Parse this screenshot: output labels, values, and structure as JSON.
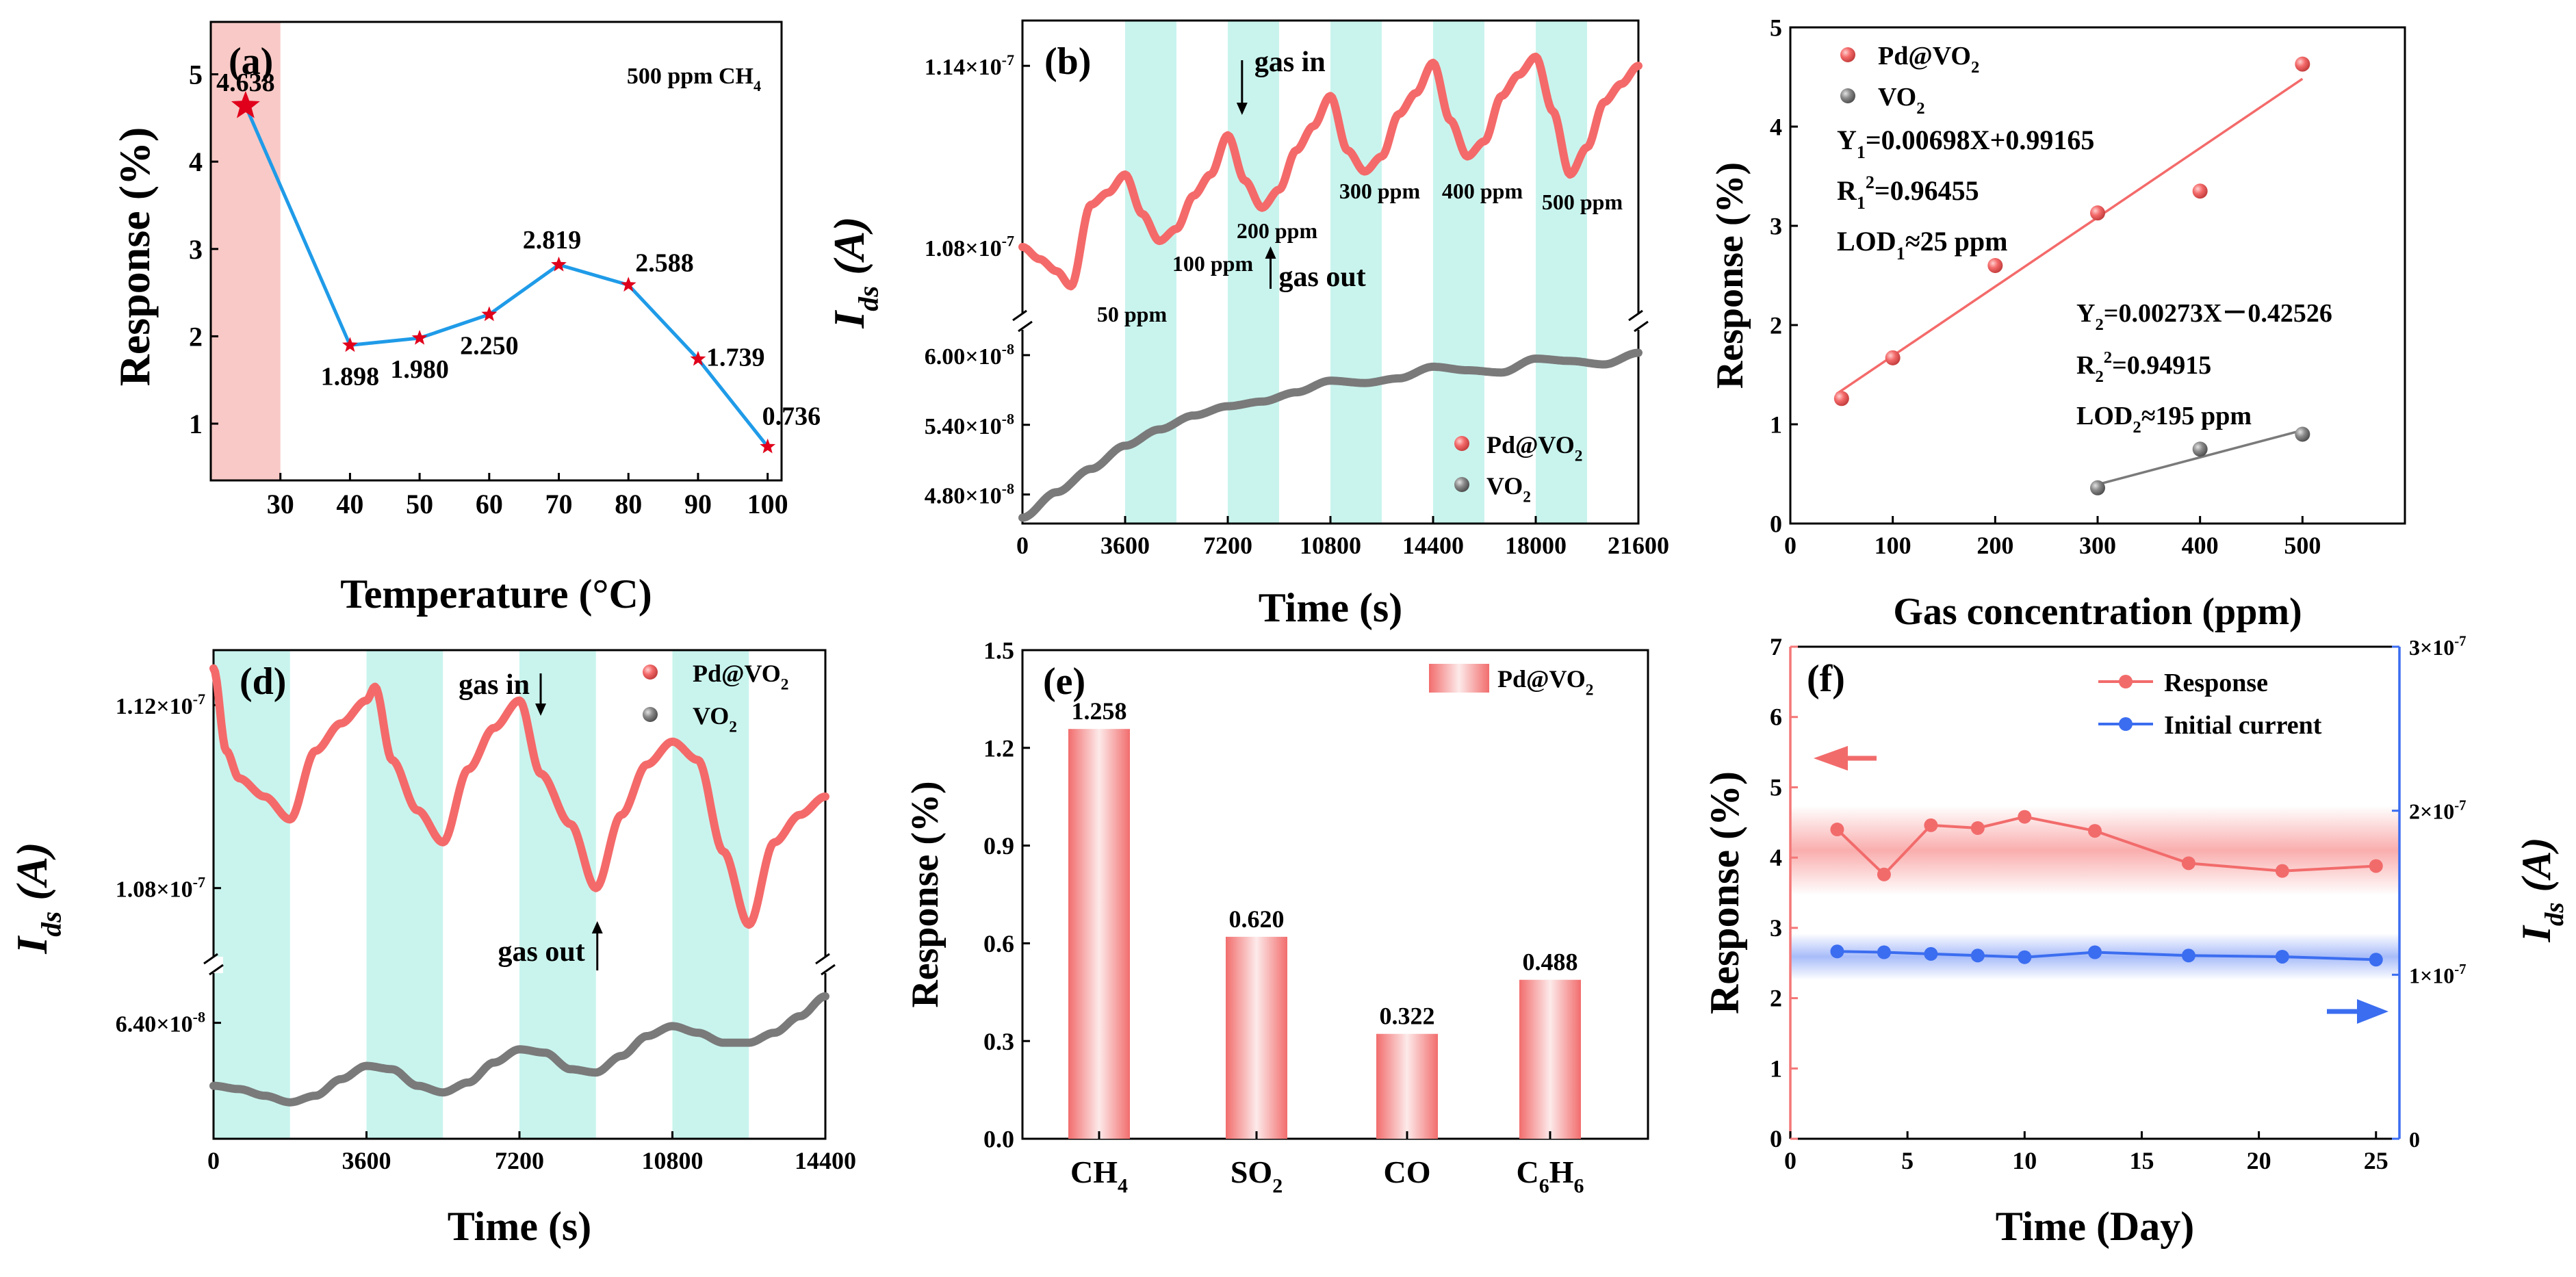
{
  "chart_data": [
    {
      "id": "a",
      "type": "line",
      "panel_label": "(a)",
      "annotation": "500 ppm CH",
      "annotation_sub": "4",
      "xlabel": "Temperature (°C)",
      "ylabel": "Response (%)",
      "xlim": [
        20,
        102
      ],
      "ylim": [
        0.35,
        5.6
      ],
      "xticks": [
        30,
        40,
        50,
        60,
        70,
        80,
        90,
        100
      ],
      "yticks": [
        1,
        2,
        3,
        4,
        5
      ],
      "x": [
        25,
        40,
        50,
        60,
        70,
        80,
        90,
        100
      ],
      "values": [
        4.638,
        1.898,
        1.98,
        2.25,
        2.819,
        2.588,
        1.739,
        0.736
      ],
      "labels": [
        "4.638",
        "1.898",
        "1.980",
        "2.250",
        "2.819",
        "2.588",
        "1.739",
        "0.736"
      ],
      "shaded_range": [
        20,
        30
      ],
      "colors": {
        "line": "#1f9be8",
        "marker": "#e0001b",
        "shade": "#f8c9c6"
      }
    },
    {
      "id": "b",
      "type": "line",
      "panel_label": "(b)",
      "xlabel": "Time (s)",
      "ylabel": "I",
      "ylabel_sub": "ds",
      "ylabel_unit": " (A)",
      "xlim": [
        0,
        21600
      ],
      "xticks": [
        0,
        3600,
        7200,
        10800,
        14400,
        18000,
        21600
      ],
      "upper_ylim": [
        1.058e-07,
        1.155e-07
      ],
      "upper_yticks": [
        1.08e-07,
        1.14e-07
      ],
      "upper_ytick_labels": [
        "1.08×10⁻⁷",
        "1.14×10⁻⁷"
      ],
      "lower_ylim": [
        4.55e-08,
        6.2e-08
      ],
      "lower_yticks": [
        4.8e-08,
        5.4e-08,
        6e-08
      ],
      "lower_ytick_labels": [
        "4.80×10⁻⁸",
        "5.40×10⁻⁸",
        "6.00×10⁻⁸"
      ],
      "gas_on_intervals": [
        [
          3600,
          5400
        ],
        [
          7200,
          9000
        ],
        [
          10800,
          12600
        ],
        [
          14400,
          16200
        ],
        [
          18000,
          19800
        ]
      ],
      "concentration_labels": [
        "50 ppm",
        "100 ppm",
        "200 ppm",
        "300 ppm",
        "400 ppm",
        "500 ppm"
      ],
      "gas_in_label": "gas in",
      "gas_out_label": "gas out",
      "legend": [
        "Pd@VO",
        "VO"
      ],
      "legend_sub": "2",
      "series": [
        {
          "name": "Pd@VO2",
          "x": [
            0,
            600,
            1200,
            1700,
            2400,
            3000,
            3600,
            4200,
            4800,
            5400,
            6000,
            6600,
            7200,
            7800,
            8400,
            9000,
            9600,
            10200,
            10800,
            11400,
            12000,
            12600,
            13200,
            13800,
            14400,
            15000,
            15600,
            16200,
            16800,
            17400,
            18000,
            18600,
            19200,
            19800,
            20400,
            21000,
            21600
          ],
          "values": [
            1.08e-07,
            1.076e-07,
            1.072e-07,
            1.067e-07,
            1.094e-07,
            1.098e-07,
            1.104e-07,
            1.091e-07,
            1.082e-07,
            1.086e-07,
            1.097e-07,
            1.104e-07,
            1.117e-07,
            1.102e-07,
            1.093e-07,
            1.099e-07,
            1.112e-07,
            1.12e-07,
            1.13e-07,
            1.112e-07,
            1.105e-07,
            1.11e-07,
            1.124e-07,
            1.131e-07,
            1.141e-07,
            1.122e-07,
            1.11e-07,
            1.115e-07,
            1.13e-07,
            1.137e-07,
            1.143e-07,
            1.125e-07,
            1.104e-07,
            1.113e-07,
            1.128e-07,
            1.134e-07,
            1.14e-07
          ],
          "color": "#f46a6a"
        },
        {
          "name": "VO2",
          "x": [
            0,
            1200,
            2400,
            3600,
            4800,
            6000,
            7200,
            8400,
            9600,
            10800,
            12000,
            13200,
            14400,
            15600,
            16800,
            18000,
            19200,
            20400,
            21600
          ],
          "values": [
            4.6e-08,
            4.82e-08,
            5.02e-08,
            5.22e-08,
            5.36e-08,
            5.48e-08,
            5.56e-08,
            5.6e-08,
            5.68e-08,
            5.78e-08,
            5.76e-08,
            5.8e-08,
            5.9e-08,
            5.87e-08,
            5.85e-08,
            5.97e-08,
            5.95e-08,
            5.92e-08,
            6.02e-08
          ],
          "color": "#7a7a7a"
        }
      ],
      "colors": {
        "shade": "#c9f4ee"
      }
    },
    {
      "id": "c",
      "type": "scatter",
      "xlabel": "Gas concentration (ppm)",
      "ylabel": "Response (%)",
      "xlim": [
        0,
        600
      ],
      "ylim": [
        0,
        5
      ],
      "xticks": [
        0,
        100,
        200,
        300,
        400,
        500
      ],
      "yticks": [
        0,
        1,
        2,
        3,
        4,
        5
      ],
      "legend": [
        "Pd@VO",
        "VO"
      ],
      "legend_sub": "2",
      "series": [
        {
          "name": "Pd@VO2",
          "x": [
            50,
            100,
            200,
            300,
            400,
            500
          ],
          "values": [
            1.26,
            1.67,
            2.6,
            3.13,
            3.35,
            4.63
          ],
          "color": "#f46a6a",
          "fit": {
            "slope": 0.00698,
            "intercept": 0.99165
          },
          "fit_text": [
            "Y",
            "1",
            "=0.00698X+0.99165"
          ],
          "r2_text": [
            "R",
            "1",
            "2",
            "=0.96455"
          ],
          "lod_text": [
            "LOD",
            "1",
            "≈25 ppm"
          ]
        },
        {
          "name": "VO2",
          "x": [
            300,
            400,
            500
          ],
          "values": [
            0.36,
            0.75,
            0.9
          ],
          "color": "#7a7a7a",
          "fit": {
            "slope": 0.00273,
            "intercept": -0.42526
          },
          "fit_text": [
            "Y",
            "2",
            "=0.00273X－0.42526"
          ],
          "r2_text": [
            "R",
            "2",
            "2",
            "=0.94915"
          ],
          "lod_text": [
            "LOD",
            "2",
            "≈195 ppm"
          ]
        }
      ]
    },
    {
      "id": "d",
      "type": "line",
      "panel_label": "(d)",
      "xlabel": "Time (s)",
      "ylabel": "I",
      "ylabel_sub": "ds",
      "ylabel_unit": " (A)",
      "xlim": [
        0,
        14400
      ],
      "xticks": [
        0,
        3600,
        7200,
        10800,
        14400
      ],
      "upper_ylim": [
        1.065e-07,
        1.132e-07
      ],
      "upper_yticks": [
        1.08e-07,
        1.12e-07
      ],
      "upper_ytick_labels": [
        "1.08×10⁻⁷",
        "1.12×10⁻⁷"
      ],
      "lower_ylim": [
        6.05e-08,
        6.55e-08
      ],
      "lower_yticks": [
        6.4e-08
      ],
      "lower_ytick_labels": [
        "6.40×10⁻⁸"
      ],
      "gas_on_intervals": [
        [
          0,
          1800
        ],
        [
          3600,
          5400
        ],
        [
          7200,
          9000
        ],
        [
          10800,
          12600
        ]
      ],
      "gas_in_label": "gas in",
      "gas_out_label": "gas out",
      "legend": [
        "Pd@VO",
        "VO"
      ],
      "legend_sub": "2",
      "series": [
        {
          "name": "Pd@VO2",
          "x": [
            0,
            300,
            600,
            1200,
            1800,
            2400,
            3000,
            3600,
            3800,
            4200,
            4800,
            5400,
            6000,
            6600,
            7200,
            7700,
            8400,
            9000,
            9600,
            10200,
            10800,
            11400,
            12000,
            12600,
            13200,
            13800,
            14400
          ],
          "values": [
            1.128e-07,
            1.11e-07,
            1.104e-07,
            1.1e-07,
            1.095e-07,
            1.11e-07,
            1.116e-07,
            1.121e-07,
            1.124e-07,
            1.108e-07,
            1.097e-07,
            1.09e-07,
            1.106e-07,
            1.115e-07,
            1.121e-07,
            1.105e-07,
            1.094e-07,
            1.08e-07,
            1.096e-07,
            1.107e-07,
            1.112e-07,
            1.108e-07,
            1.088e-07,
            1.072e-07,
            1.09e-07,
            1.096e-07,
            1.1e-07
          ],
          "color": "#f46a6a"
        },
        {
          "name": "VO2",
          "x": [
            0,
            600,
            1200,
            1800,
            2400,
            3000,
            3600,
            4200,
            4800,
            5400,
            6000,
            6600,
            7200,
            7800,
            8400,
            9000,
            9600,
            10200,
            10800,
            11400,
            12000,
            12600,
            13200,
            13800,
            14400
          ],
          "values": [
            6.21e-08,
            6.2e-08,
            6.18e-08,
            6.16e-08,
            6.18e-08,
            6.23e-08,
            6.27e-08,
            6.26e-08,
            6.21e-08,
            6.19e-08,
            6.22e-08,
            6.28e-08,
            6.32e-08,
            6.31e-08,
            6.26e-08,
            6.25e-08,
            6.3e-08,
            6.36e-08,
            6.39e-08,
            6.37e-08,
            6.34e-08,
            6.34e-08,
            6.37e-08,
            6.42e-08,
            6.48e-08
          ],
          "color": "#7a7a7a"
        }
      ],
      "colors": {
        "shade": "#c9f4ee"
      }
    },
    {
      "id": "e",
      "type": "bar",
      "panel_label": "(e)",
      "xlabel": "",
      "ylabel": "Response (%)",
      "ylim": [
        0,
        1.5
      ],
      "yticks": [
        0.0,
        0.3,
        0.6,
        0.9,
        1.2,
        1.5
      ],
      "ytick_labels": [
        "0.0",
        "0.3",
        "0.6",
        "0.9",
        "1.2",
        "1.5"
      ],
      "categories": [
        "CH4",
        "SO2",
        "CO",
        "C6H6"
      ],
      "category_parts": [
        [
          "CH",
          "4",
          ""
        ],
        [
          "SO",
          "2",
          ""
        ],
        [
          "CO",
          "",
          ""
        ],
        [
          "C",
          "6",
          "H",
          "6"
        ]
      ],
      "values": [
        1.258,
        0.62,
        0.322,
        0.488
      ],
      "labels": [
        "1.258",
        "0.620",
        "0.322",
        "0.488"
      ],
      "legend": [
        "Pd@VO"
      ],
      "legend_sub": "2",
      "colors": {
        "bar_edge": "#f26d6d",
        "bar_mid": "#fdeaea"
      }
    },
    {
      "id": "f",
      "type": "line",
      "panel_label": "(f)",
      "xlabel": "Time (Day)",
      "ylabel": "Response (%)",
      "ylabel_right": "I",
      "ylabel_right_sub": "ds",
      "ylabel_right_unit": " (A)",
      "xlim": [
        0,
        26
      ],
      "xticks": [
        0,
        5,
        10,
        15,
        20,
        25
      ],
      "ylim": [
        0,
        7
      ],
      "yticks": [
        0,
        1,
        2,
        3,
        4,
        5,
        6,
        7
      ],
      "y2lim": [
        0,
        3e-07
      ],
      "y2ticks": [
        0,
        1e-07,
        2e-07,
        3e-07
      ],
      "y2tick_labels": [
        "0",
        "1×10⁻⁷",
        "2×10⁻⁷",
        "3×10⁻⁷"
      ],
      "legend": [
        "Response",
        "Initial current"
      ],
      "series": [
        {
          "name": "Response",
          "axis": "left",
          "x": [
            2,
            4,
            6,
            8,
            10,
            13,
            17,
            21,
            25
          ],
          "values": [
            4.4,
            3.76,
            4.46,
            4.42,
            4.58,
            4.38,
            3.92,
            3.81,
            3.88
          ],
          "color": "#f26b6b"
        },
        {
          "name": "Initial current",
          "axis": "right",
          "x": [
            2,
            4,
            6,
            8,
            10,
            13,
            17,
            21,
            25
          ],
          "values": [
            1.142e-07,
            1.137e-07,
            1.127e-07,
            1.117e-07,
            1.107e-07,
            1.137e-07,
            1.117e-07,
            1.11e-07,
            1.092e-07
          ],
          "color": "#3b6df0"
        }
      ],
      "colors": {
        "left_axis": "#f47777",
        "right_axis": "#3b6df0",
        "band_red": "#f56b6b",
        "band_blue": "#6d8ff5"
      }
    }
  ]
}
